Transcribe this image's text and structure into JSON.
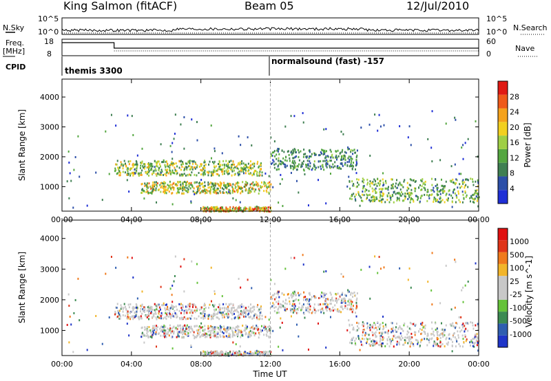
{
  "header": {
    "station": "King Salmon (fitACF)",
    "beam": "Beam 05",
    "date": "12/Jul/2010"
  },
  "noise_panel": {
    "left_label": "N.Sky",
    "right_label": "N.Search",
    "tick_top_left": "10^5",
    "tick_bottom_left": "10^0",
    "tick_top_right": "10^5",
    "tick_bottom_right": "10^0"
  },
  "freq_panel": {
    "left_label_1": "Freq.",
    "left_label_2": "[MHz]",
    "right_label": "Nave",
    "tick_top_left": "18",
    "tick_bottom_left": "8",
    "tick_top_right": "60",
    "tick_bottom_right": "0"
  },
  "cpid": {
    "label": "CPID",
    "mode_1": "themis 3300",
    "mode_2": "normalsound (fast) -157"
  },
  "colors": {
    "power_scale": [
      "#1f2fd6",
      "#2c4fa8",
      "#3f7f52",
      "#54a640",
      "#9fcf45",
      "#f2d020",
      "#f5a21c",
      "#ef5a1a",
      "#e01a14"
    ],
    "velocity_scale": [
      "#1f35c8",
      "#2f5eb0",
      "#3c8a52",
      "#65c23a",
      "#c8c8c8",
      "#c8c8c8",
      "#f2b52a",
      "#f07a1c",
      "#e03418",
      "#e01010"
    ],
    "marker_line": "#aaaaaa"
  },
  "chart_data": [
    {
      "type": "heatmap",
      "name": "power",
      "xlabel": "",
      "ylabel": "Slant Range [km]",
      "x_ticks": [
        "00:00",
        "04:00",
        "08:00",
        "12:00",
        "16:00",
        "20:00",
        "00:00"
      ],
      "xlim_hours": [
        0,
        24
      ],
      "ylim": [
        180,
        4600
      ],
      "y_ticks": [
        1000,
        2000,
        3000,
        4000
      ],
      "colorbar": {
        "label": "Power [dB]",
        "ticks": [
          "4",
          "8",
          "12",
          "16",
          "20",
          "24",
          "28"
        ],
        "range": [
          0,
          30
        ]
      },
      "features": [
        {
          "t_start": 3.0,
          "t_end": 11.5,
          "range_km": [
            1400,
            1900
          ],
          "peak_db": 22
        },
        {
          "t_start": 4.5,
          "t_end": 12.0,
          "range_km": [
            800,
            1200
          ],
          "peak_db": 24
        },
        {
          "t_start": 8.0,
          "t_end": 12.0,
          "range_km": [
            200,
            350
          ],
          "peak_db": 30
        },
        {
          "t_start": 12.0,
          "t_end": 17.0,
          "range_km": [
            1600,
            2300
          ],
          "peak_db": 14
        },
        {
          "t_start": 16.5,
          "t_end": 24.0,
          "range_km": [
            500,
            1300
          ],
          "peak_db": 18
        }
      ]
    },
    {
      "type": "heatmap",
      "name": "velocity",
      "xlabel": "Time UT",
      "ylabel": "Slant Range [km]",
      "x_ticks": [
        "00:00",
        "04:00",
        "08:00",
        "12:00",
        "16:00",
        "20:00",
        "00:00"
      ],
      "xlim_hours": [
        0,
        24
      ],
      "ylim": [
        180,
        4600
      ],
      "y_ticks": [
        1000,
        2000,
        3000,
        4000
      ],
      "colorbar": {
        "label": "Velocity [m s^-1]",
        "ticks": [
          "1000",
          "500",
          "100",
          "25",
          "-25",
          "-100",
          "-500",
          "-1000"
        ]
      }
    }
  ]
}
